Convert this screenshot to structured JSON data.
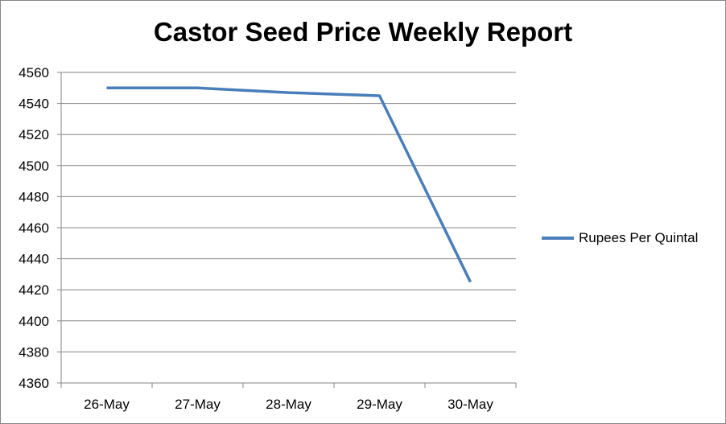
{
  "chart_data": {
    "type": "line",
    "title": "Castor Seed Price Weekly Report",
    "xlabel": "",
    "ylabel": "",
    "categories": [
      "26-May",
      "27-May",
      "28-May",
      "29-May",
      "30-May"
    ],
    "series": [
      {
        "name": "Rupees Per Quintal",
        "values": [
          4550,
          4550,
          4547,
          4545,
          4425
        ],
        "color": "#4a7ebb"
      }
    ],
    "ylim": [
      4360,
      4560
    ],
    "yticks": [
      4360,
      4380,
      4400,
      4420,
      4440,
      4460,
      4480,
      4500,
      4520,
      4540,
      4560
    ],
    "grid": true,
    "legend_position": "right"
  }
}
